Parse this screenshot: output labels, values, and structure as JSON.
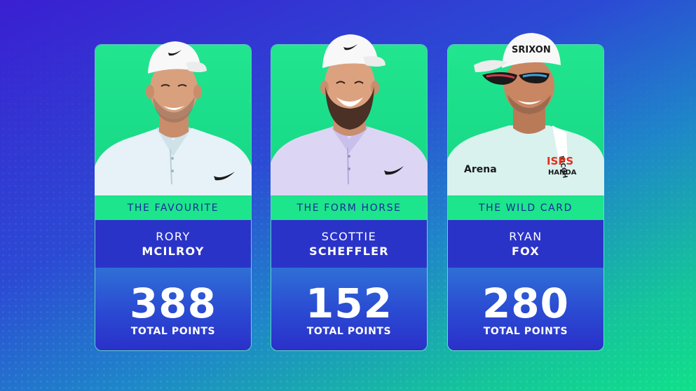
{
  "colors": {
    "accent_green": "#1de58c",
    "name_blue": "#2a33c8",
    "label_text": "#1a2c9a"
  },
  "players": [
    {
      "category": "THE FAVOURITE",
      "first_name": "RORY",
      "last_name": "MCILROY",
      "points": "388",
      "points_label": "TOTAL POINTS",
      "shirt_color": "#e6f2f7",
      "cap_logo": "swoosh"
    },
    {
      "category": "THE FORM HORSE",
      "first_name": "SCOTTIE",
      "last_name": "SCHEFFLER",
      "points": "152",
      "points_label": "TOTAL POINTS",
      "shirt_color": "#dcd6f4",
      "cap_logo": "swoosh"
    },
    {
      "category": "THE WILD CARD",
      "first_name": "RYAN",
      "last_name": "FOX",
      "points": "280",
      "points_label": "TOTAL POINTS",
      "shirt_color": "#d9f2ee",
      "cap_logo": "SRIXON",
      "shirt_sponsors": [
        "Arena",
        "ISPS",
        "HANDA"
      ]
    }
  ]
}
